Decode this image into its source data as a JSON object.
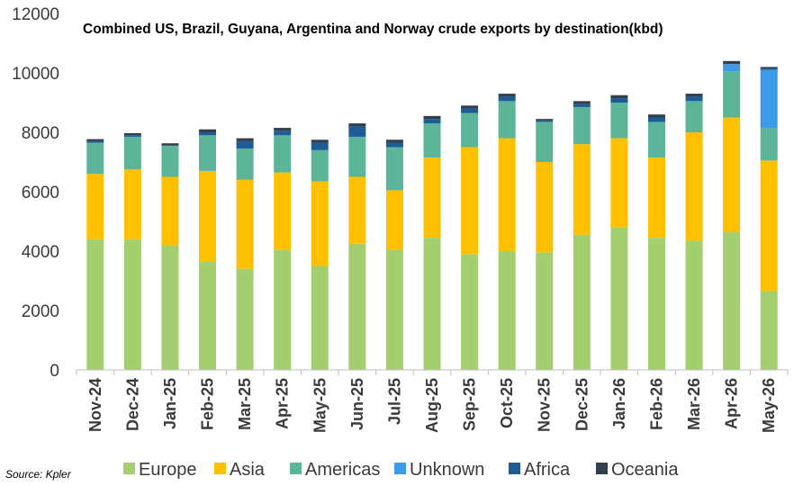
{
  "chart_data": {
    "type": "bar",
    "stacked": true,
    "title": "Combined US, Brazil, Guyana, Argentina and Norway crude exports by destination(kbd)",
    "xlabel": "",
    "ylabel": "",
    "ylim": [
      0,
      12000
    ],
    "yticks": [
      0,
      2000,
      4000,
      6000,
      8000,
      10000,
      12000
    ],
    "ytick_labels": [
      "0",
      "2000",
      "4000",
      "6000",
      "8000",
      "10000",
      "12000"
    ],
    "grid": false,
    "legend_position": "bottom",
    "categories": [
      "Nov-24",
      "Dec-24",
      "Jan-25",
      "Feb-25",
      "Mar-25",
      "Apr-25",
      "May-25",
      "Jun-25",
      "Jul-25",
      "Aug-25",
      "Sep-25",
      "Oct-25",
      "Nov-25",
      "Dec-25",
      "Jan-26",
      "Feb-26",
      "Mar-26",
      "Apr-26",
      "May-26"
    ],
    "series": [
      {
        "name": "Europe",
        "color": "#a3cf6f",
        "values": [
          4400,
          4400,
          4200,
          3650,
          3400,
          4050,
          3500,
          4250,
          4050,
          4450,
          3900,
          4000,
          3950,
          4550,
          4800,
          4450,
          4350,
          4650,
          2650
        ]
      },
      {
        "name": "Asia",
        "color": "#ffc000",
        "values": [
          2200,
          2350,
          2300,
          3050,
          3000,
          2600,
          2850,
          2250,
          2000,
          2700,
          3600,
          3800,
          3050,
          3050,
          3000,
          2700,
          3650,
          3850,
          4400
        ]
      },
      {
        "name": "Americas",
        "color": "#5cb598",
        "values": [
          1050,
          1100,
          1050,
          1200,
          1050,
          1250,
          1050,
          1350,
          1450,
          1150,
          1150,
          1250,
          1350,
          1250,
          1200,
          1200,
          1050,
          1550,
          1100
        ]
      },
      {
        "name": "Unknown",
        "color": "#3d9ae8",
        "values": [
          0,
          0,
          0,
          0,
          0,
          0,
          0,
          0,
          0,
          0,
          0,
          0,
          0,
          0,
          0,
          0,
          0,
          250,
          1950
        ]
      },
      {
        "name": "Africa",
        "color": "#1d5c96",
        "values": [
          50,
          50,
          0,
          100,
          250,
          150,
          250,
          350,
          150,
          150,
          150,
          150,
          50,
          100,
          150,
          150,
          150,
          0,
          50
        ]
      },
      {
        "name": "Oceania",
        "color": "#333f4f",
        "values": [
          70,
          70,
          80,
          100,
          100,
          100,
          100,
          100,
          100,
          100,
          100,
          100,
          50,
          100,
          100,
          100,
          100,
          100,
          50
        ]
      }
    ],
    "source": "Source: Kpler"
  }
}
